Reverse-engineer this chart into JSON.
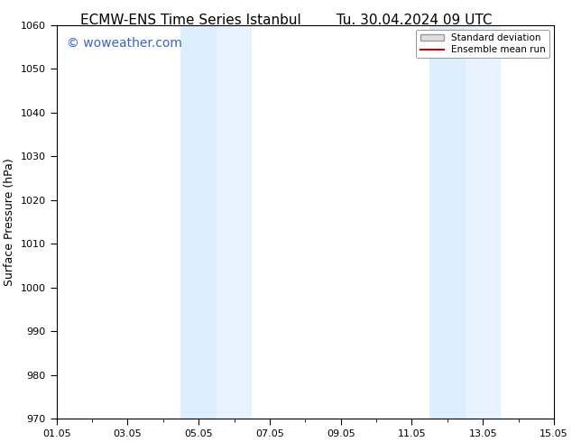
{
  "title1": "ECMW-ENS Time Series Istanbul",
  "title2": "Tu. 30.04.2024 09 UTC",
  "ylabel": "Surface Pressure (hPa)",
  "ylim": [
    970,
    1060
  ],
  "yticks": [
    970,
    980,
    990,
    1000,
    1010,
    1020,
    1030,
    1040,
    1050,
    1060
  ],
  "xlim": [
    0,
    14
  ],
  "xtick_labels": [
    "01.05",
    "03.05",
    "05.05",
    "07.05",
    "09.05",
    "11.05",
    "13.05",
    "15.05"
  ],
  "xtick_positions": [
    0,
    2,
    4,
    6,
    8,
    10,
    12,
    14
  ],
  "shaded_regions": [
    {
      "x_start": 3.5,
      "x_end": 4.5,
      "color": "#ddeeff"
    },
    {
      "x_start": 4.5,
      "x_end": 5.5,
      "color": "#e8f3ff"
    },
    {
      "x_start": 10.5,
      "x_end": 11.5,
      "color": "#ddeeff"
    },
    {
      "x_start": 11.5,
      "x_end": 12.5,
      "color": "#e8f3ff"
    }
  ],
  "background_color": "#ffffff",
  "watermark_text": "© woweather.com",
  "watermark_color": "#3366cc",
  "watermark_fontsize": 10,
  "legend_std_label": "Standard deviation",
  "legend_ens_label": "Ensemble mean run",
  "legend_std_facecolor": "#e0e0e0",
  "legend_std_edgecolor": "#999999",
  "legend_ens_color": "#cc0000",
  "title_fontsize": 11,
  "tick_fontsize": 8,
  "ylabel_fontsize": 9,
  "spine_color": "#000000",
  "tick_color": "#000000"
}
